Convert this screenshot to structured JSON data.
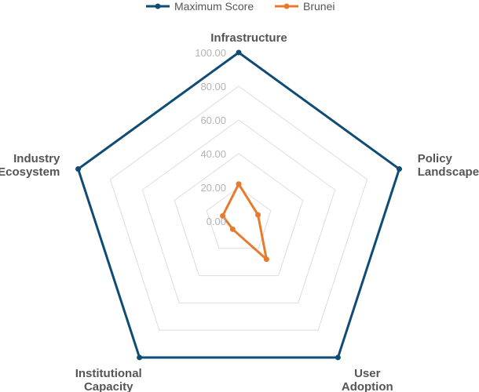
{
  "chart_data": {
    "type": "radar",
    "title": "",
    "categories": [
      "Infrastructure",
      "Policy Landscape",
      "User Adoption",
      "Institutional Capacity",
      "Industry Ecosystem"
    ],
    "category_lines": [
      [
        "Infrastructure"
      ],
      [
        "Policy",
        "Landscape"
      ],
      [
        "User",
        "Adoption"
      ],
      [
        "Institutional",
        "Capacity"
      ],
      [
        "Industry",
        "Ecosystem"
      ]
    ],
    "rlim": [
      0,
      100
    ],
    "ticks": [
      "0.00",
      "20.00",
      "40.00",
      "60.00",
      "80.00",
      "100.00"
    ],
    "tick_values": [
      0,
      20,
      40,
      60,
      80,
      100
    ],
    "grid": true,
    "legend_position": "top-center",
    "series": [
      {
        "name": "Maximum Score",
        "color": "#0f4c75",
        "values": [
          100,
          100,
          100,
          100,
          100
        ]
      },
      {
        "name": "Brunei",
        "color": "#e87a2e",
        "values": [
          22,
          12,
          28,
          6,
          10
        ]
      }
    ]
  }
}
